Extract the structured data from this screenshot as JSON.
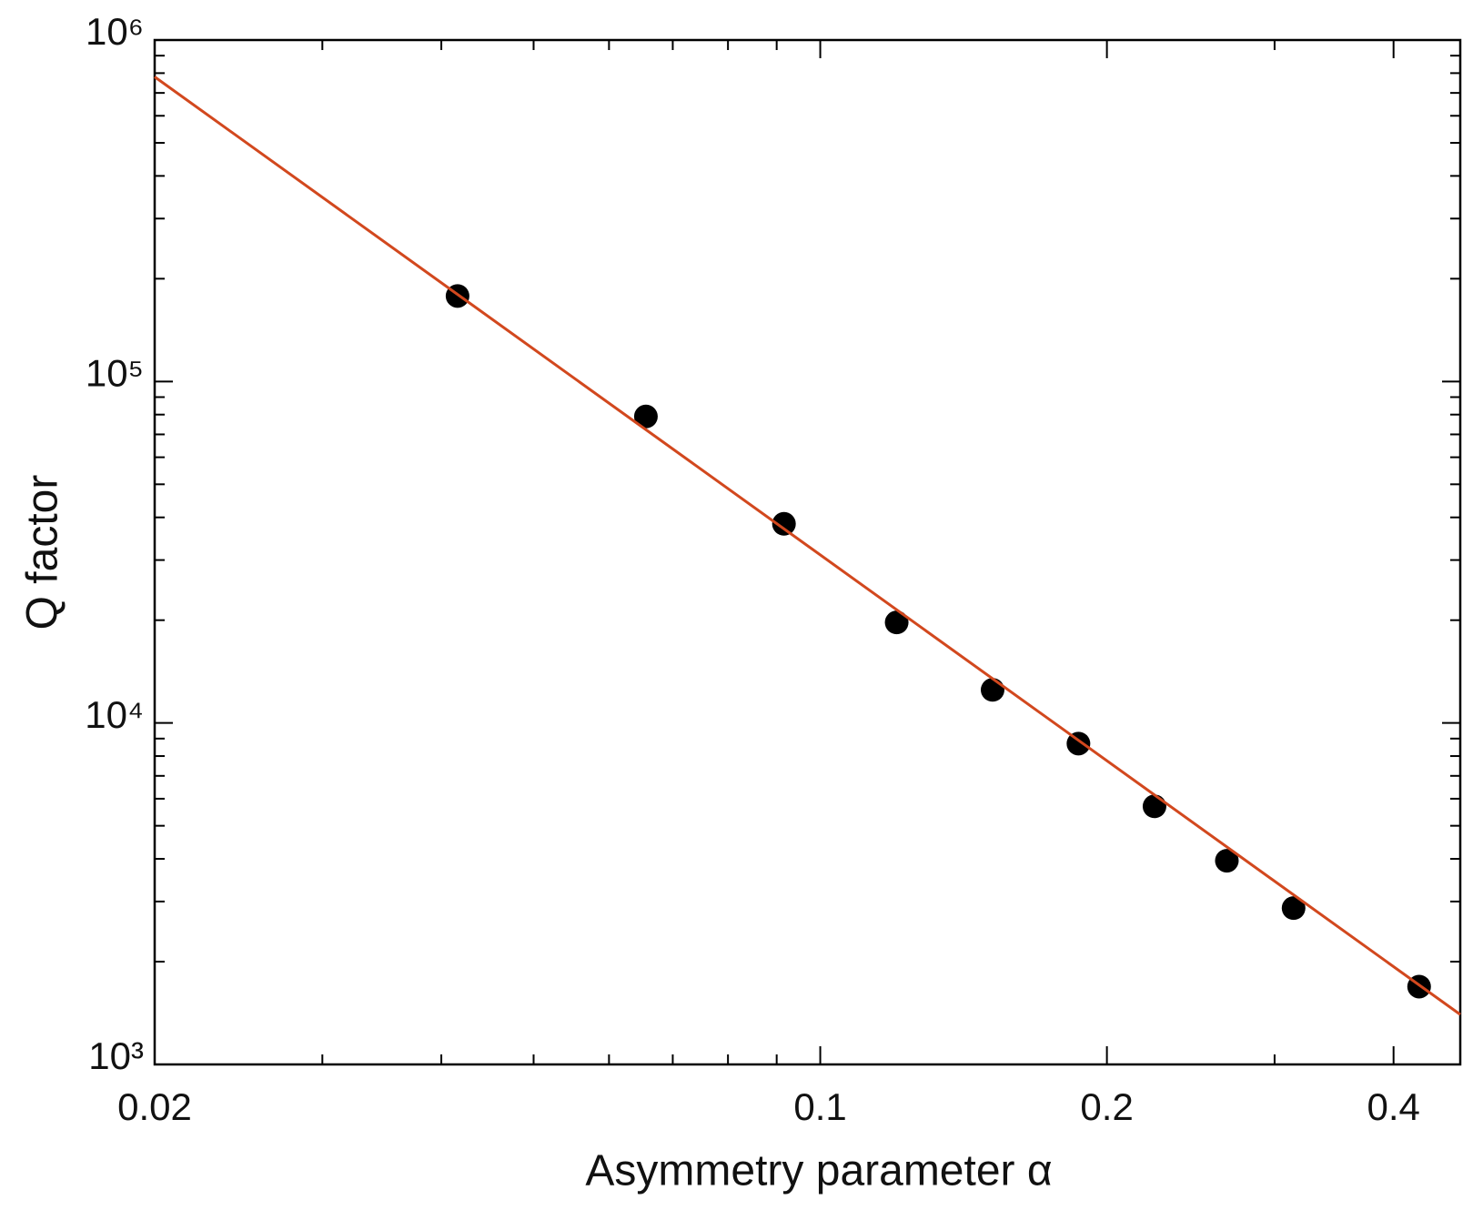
{
  "chart_data": {
    "type": "scatter",
    "xlabel": "Asymmetry parameter α",
    "ylabel": "Q factor",
    "xscale": "log",
    "yscale": "log",
    "xlim": [
      0.02,
      0.47
    ],
    "ylim": [
      1000,
      1000000
    ],
    "xticks": [
      0.02,
      0.1,
      0.2,
      0.4
    ],
    "xminorticks": [
      0.03,
      0.04,
      0.05,
      0.06,
      0.07,
      0.08,
      0.09,
      0.3
    ],
    "yticks": [
      {
        "value": 1000,
        "label": "10³"
      },
      {
        "value": 10000,
        "label": "10⁴"
      },
      {
        "value": 100000,
        "label": "10⁵"
      },
      {
        "value": 1000000,
        "label": "10⁶"
      }
    ],
    "yminorticks": [
      2000,
      3000,
      4000,
      5000,
      6000,
      7000,
      8000,
      9000,
      20000,
      30000,
      40000,
      50000,
      60000,
      70000,
      80000,
      90000,
      200000,
      300000,
      400000,
      500000,
      600000,
      700000,
      800000,
      900000
    ],
    "series": [
      {
        "type": "scatter",
        "color": "#000000",
        "x": [
          0.0416,
          0.0656,
          0.0916,
          0.1203,
          0.1517,
          0.1867,
          0.2244,
          0.2673,
          0.3141,
          0.4255
        ],
        "values": [
          178000,
          79000,
          38300,
          19700,
          12500,
          8700,
          5700,
          3950,
          2870,
          1690
        ]
      },
      {
        "type": "line",
        "color": "#d2481e",
        "x": [
          0.02,
          0.47
        ],
        "values": [
          780000,
          1400
        ]
      }
    ]
  }
}
